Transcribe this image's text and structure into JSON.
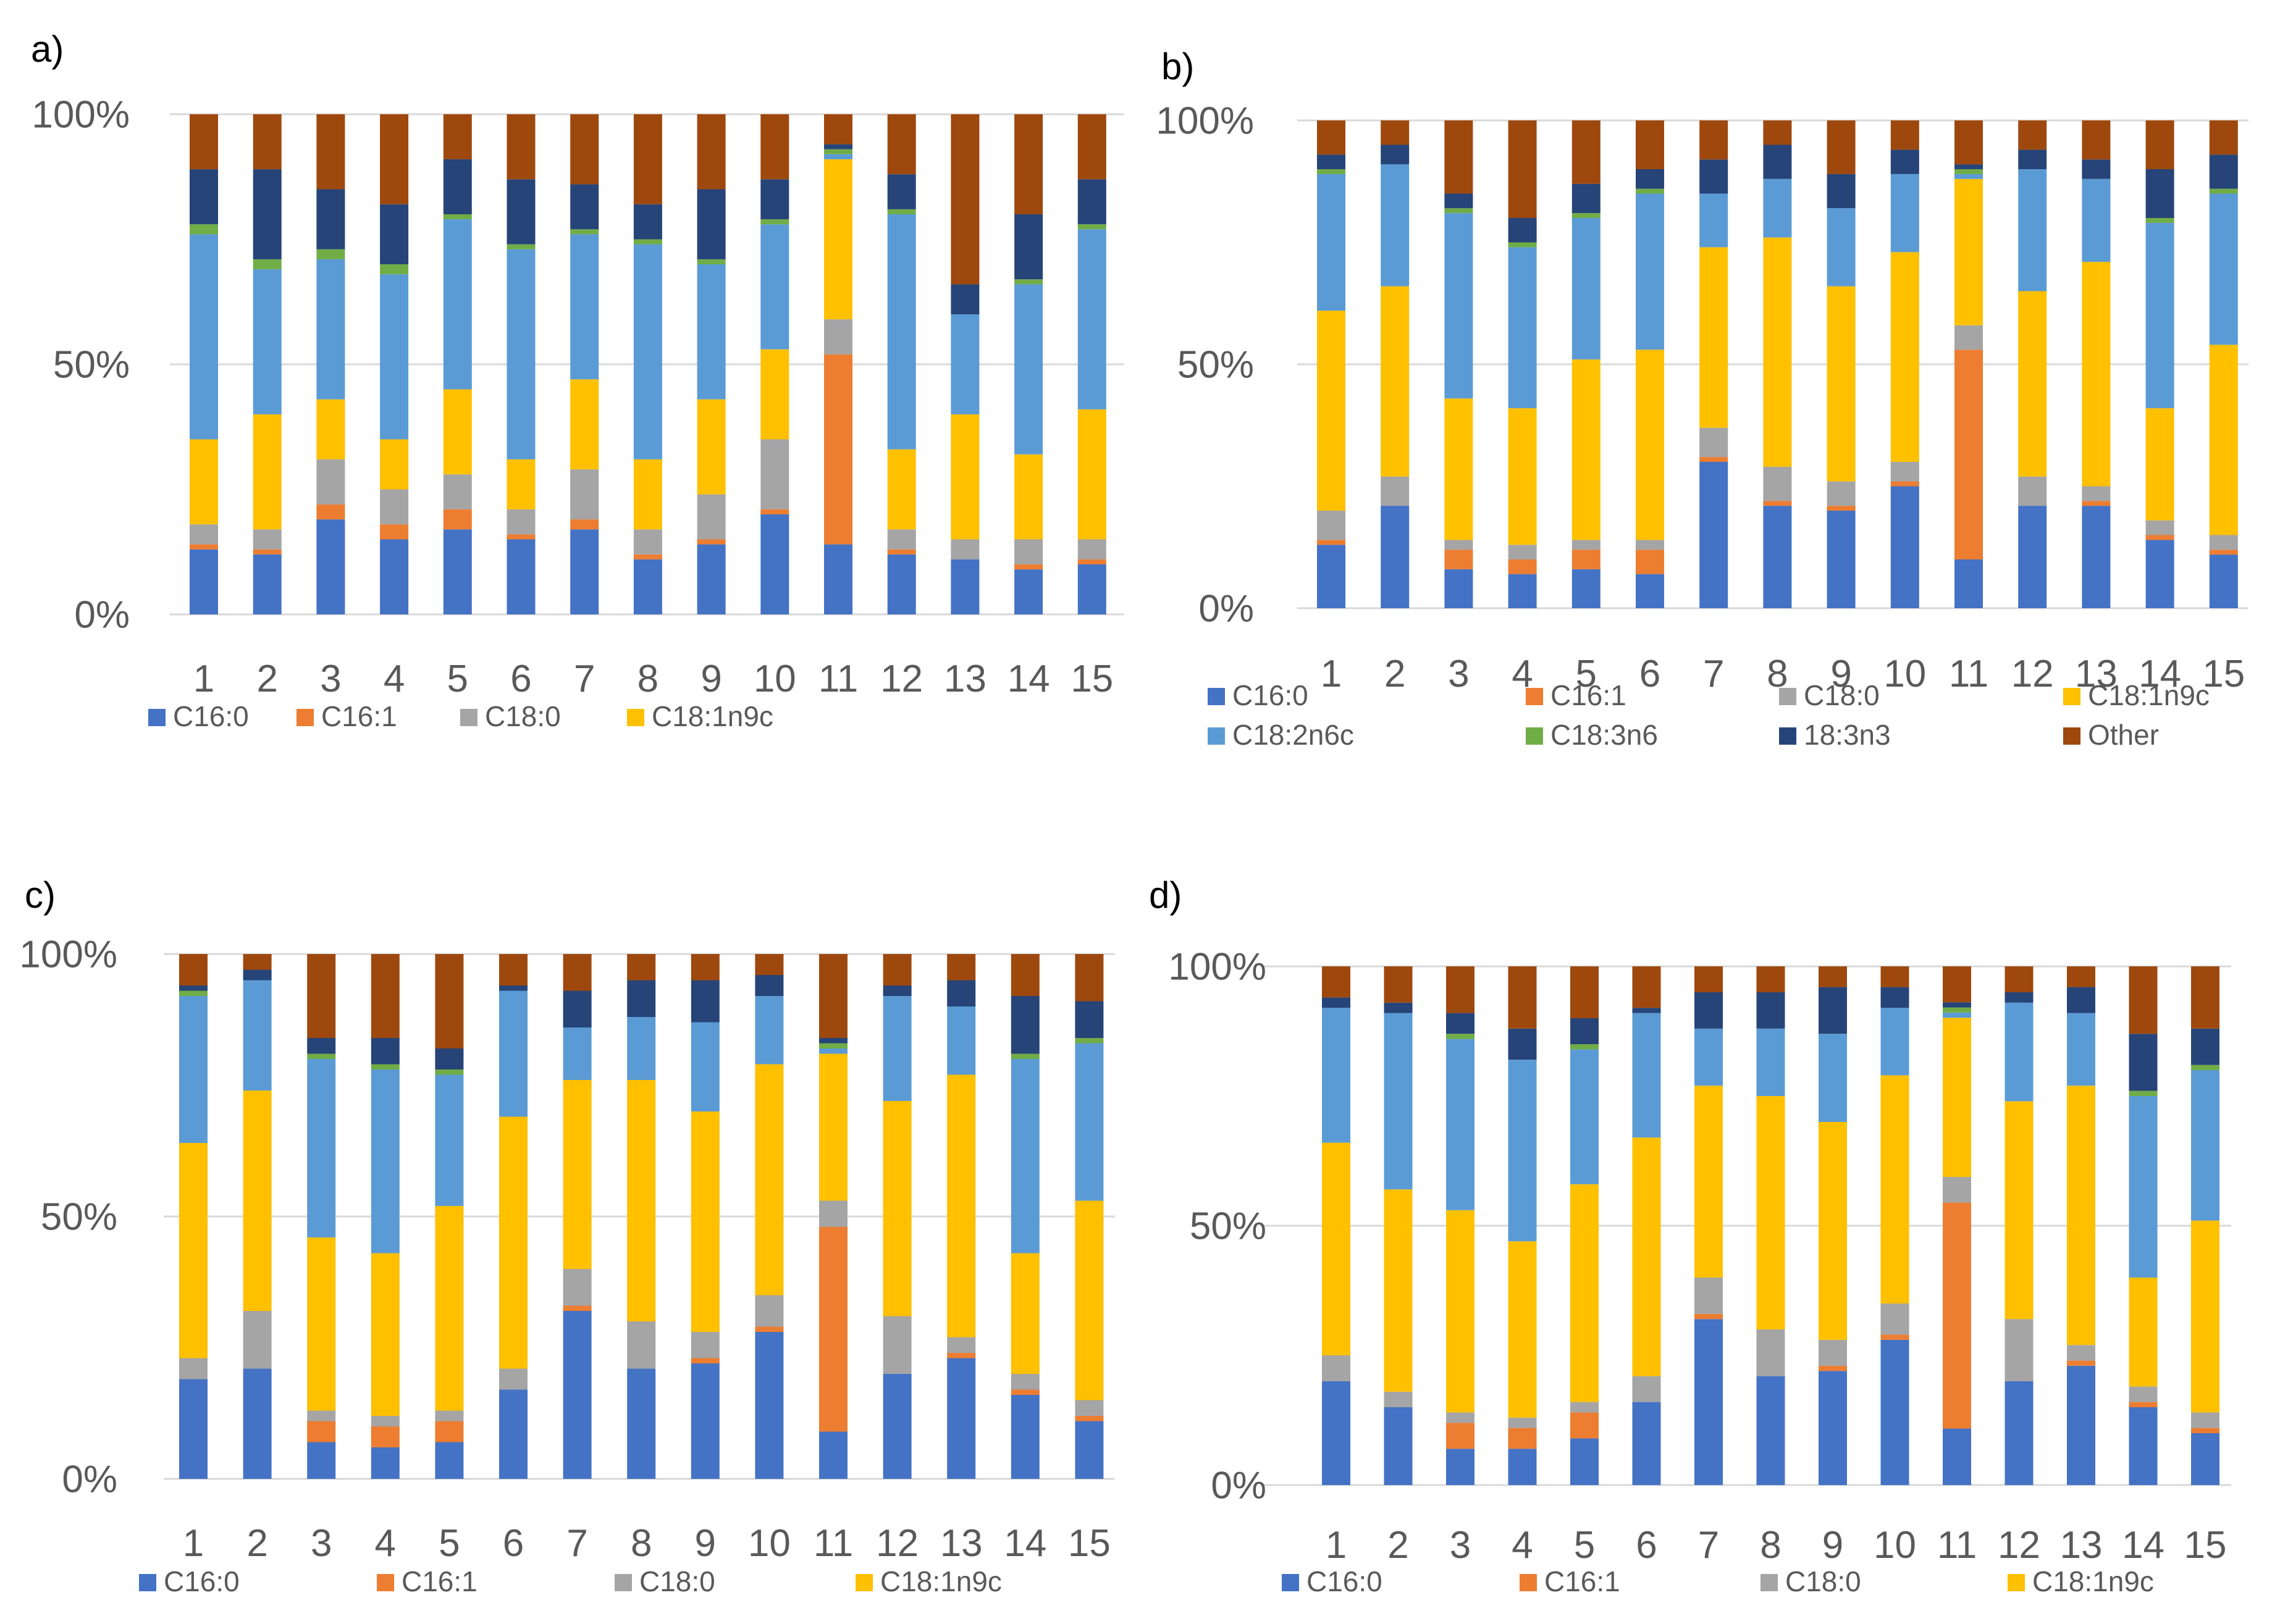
{
  "colors": {
    "C16:0": "#4472c4",
    "C16:1": "#ed7d31",
    "C18:0": "#a5a5a5",
    "C18:1n9c": "#ffc000",
    "C18:2n6c": "#5b9bd5",
    "C18:3n6": "#70ad47",
    "18:3n3": "#264478",
    "Other": "#9e480e",
    "grid": "#d9d9d9",
    "text": "#595959",
    "panel_label": "#000000"
  },
  "chart_data": [
    {
      "panel": "a)",
      "type": "bar",
      "stacked": "percent",
      "y_tick_labels": [
        "0%",
        "50%",
        "100%"
      ],
      "ylim": [
        0,
        100
      ],
      "categories": [
        "1",
        "2",
        "3",
        "4",
        "5",
        "6",
        "7",
        "8",
        "9",
        "10",
        "11",
        "12",
        "13",
        "14",
        "15"
      ],
      "legend": [
        "C16:0",
        "C16:1",
        "C18:0",
        "C18:1n9c"
      ],
      "series": [
        {
          "name": "C16:0",
          "values": [
            13,
            12,
            19,
            15,
            17,
            15,
            17,
            11,
            14,
            20,
            14,
            12,
            11,
            9,
            10
          ]
        },
        {
          "name": "C16:1",
          "values": [
            1,
            1,
            3,
            3,
            4,
            1,
            2,
            1,
            1,
            1,
            38,
            1,
            0,
            1,
            1
          ]
        },
        {
          "name": "C18:0",
          "values": [
            4,
            4,
            9,
            7,
            7,
            5,
            10,
            5,
            9,
            14,
            7,
            4,
            4,
            5,
            4
          ]
        },
        {
          "name": "C18:1n9c",
          "values": [
            17,
            23,
            12,
            10,
            17,
            10,
            18,
            14,
            19,
            18,
            32,
            16,
            25,
            17,
            26
          ]
        },
        {
          "name": "C18:2n6c",
          "values": [
            41,
            29,
            28,
            33,
            34,
            42,
            29,
            43,
            27,
            25,
            1,
            47,
            20,
            34,
            36
          ]
        },
        {
          "name": "C18:3n6",
          "values": [
            2,
            2,
            2,
            2,
            1,
            1,
            1,
            1,
            1,
            1,
            1,
            1,
            0,
            1,
            1
          ]
        },
        {
          "name": "18:3n3",
          "values": [
            11,
            18,
            12,
            12,
            11,
            13,
            9,
            7,
            14,
            8,
            1,
            7,
            6,
            13,
            9
          ]
        },
        {
          "name": "Other",
          "values": [
            11,
            11,
            15,
            18,
            9,
            13,
            14,
            18,
            15,
            13,
            6,
            12,
            34,
            20,
            13
          ]
        }
      ]
    },
    {
      "panel": "b)",
      "type": "bar",
      "stacked": "percent",
      "y_tick_labels": [
        "0%",
        "50%",
        "100%"
      ],
      "ylim": [
        0,
        100
      ],
      "categories": [
        "1",
        "2",
        "3",
        "4",
        "5",
        "6",
        "7",
        "8",
        "9",
        "10",
        "11",
        "12",
        "13",
        "14",
        "15"
      ],
      "legend": [
        "C16:0",
        "C16:1",
        "C18:0",
        "C18:1n9c",
        "C18:2n6c",
        "C18:3n6",
        "18:3n3",
        "Other"
      ],
      "series": [
        {
          "name": "C16:0",
          "values": [
            13,
            21,
            8,
            7,
            8,
            7,
            30,
            21,
            20,
            25,
            10,
            21,
            21,
            14,
            11
          ]
        },
        {
          "name": "C16:1",
          "values": [
            1,
            0,
            4,
            3,
            4,
            5,
            1,
            1,
            1,
            1,
            43,
            0,
            1,
            1,
            1
          ]
        },
        {
          "name": "C18:0",
          "values": [
            6,
            6,
            2,
            3,
            2,
            2,
            6,
            7,
            5,
            4,
            5,
            6,
            3,
            3,
            3
          ]
        },
        {
          "name": "C18:1n9c",
          "values": [
            41,
            39,
            29,
            28,
            37,
            39,
            37,
            47,
            40,
            43,
            30,
            38,
            46,
            23,
            39
          ]
        },
        {
          "name": "C18:2n6c",
          "values": [
            28,
            25,
            38,
            33,
            29,
            32,
            11,
            12,
            16,
            16,
            1,
            25,
            17,
            38,
            31
          ]
        },
        {
          "name": "C18:3n6",
          "values": [
            1,
            0,
            1,
            1,
            1,
            1,
            0,
            0,
            0,
            0,
            1,
            0,
            0,
            1,
            1
          ]
        },
        {
          "name": "18:3n3",
          "values": [
            3,
            4,
            3,
            5,
            6,
            4,
            7,
            7,
            7,
            5,
            1,
            4,
            4,
            10,
            7
          ]
        },
        {
          "name": "Other",
          "values": [
            7,
            5,
            15,
            20,
            13,
            10,
            8,
            5,
            11,
            6,
            9,
            6,
            8,
            10,
            7
          ]
        }
      ]
    },
    {
      "panel": "c)",
      "type": "bar",
      "stacked": "percent",
      "y_tick_labels": [
        "0%",
        "50%",
        "100%"
      ],
      "ylim": [
        0,
        100
      ],
      "categories": [
        "1",
        "2",
        "3",
        "4",
        "5",
        "6",
        "7",
        "8",
        "9",
        "10",
        "11",
        "12",
        "13",
        "14",
        "15"
      ],
      "legend": [
        "C16:0",
        "C16:1",
        "C18:0",
        "C18:1n9c"
      ],
      "series": [
        {
          "name": "C16:0",
          "values": [
            19,
            21,
            7,
            6,
            7,
            17,
            32,
            21,
            22,
            28,
            9,
            20,
            23,
            16,
            11
          ]
        },
        {
          "name": "C16:1",
          "values": [
            0,
            0,
            4,
            4,
            4,
            0,
            1,
            0,
            1,
            1,
            39,
            0,
            1,
            1,
            1
          ]
        },
        {
          "name": "C18:0",
          "values": [
            4,
            11,
            2,
            2,
            2,
            4,
            7,
            9,
            5,
            6,
            5,
            11,
            3,
            3,
            3
          ]
        },
        {
          "name": "C18:1n9c",
          "values": [
            41,
            42,
            33,
            31,
            39,
            48,
            36,
            46,
            42,
            44,
            28,
            41,
            50,
            23,
            38
          ]
        },
        {
          "name": "C18:2n6c",
          "values": [
            28,
            21,
            34,
            35,
            25,
            24,
            10,
            12,
            17,
            13,
            1,
            20,
            13,
            37,
            30
          ]
        },
        {
          "name": "C18:3n6",
          "values": [
            1,
            0,
            1,
            1,
            1,
            0,
            0,
            0,
            0,
            0,
            1,
            0,
            0,
            1,
            1
          ]
        },
        {
          "name": "18:3n3",
          "values": [
            1,
            2,
            3,
            5,
            4,
            1,
            7,
            7,
            8,
            4,
            1,
            2,
            5,
            11,
            7
          ]
        },
        {
          "name": "Other",
          "values": [
            6,
            3,
            16,
            16,
            18,
            6,
            7,
            5,
            5,
            4,
            16,
            6,
            5,
            8,
            9
          ]
        }
      ]
    },
    {
      "panel": "d)",
      "type": "bar",
      "stacked": "percent",
      "y_tick_labels": [
        "0%",
        "50%",
        "100%"
      ],
      "ylim": [
        0,
        100
      ],
      "categories": [
        "1",
        "2",
        "3",
        "4",
        "5",
        "6",
        "7",
        "8",
        "9",
        "10",
        "11",
        "12",
        "13",
        "14",
        "15"
      ],
      "legend": [
        "C16:0",
        "C16:1",
        "C18:0",
        "C18:1n9c"
      ],
      "series": [
        {
          "name": "C16:0",
          "values": [
            20,
            15,
            7,
            7,
            9,
            16,
            32,
            21,
            22,
            28,
            11,
            20,
            23,
            15,
            10
          ]
        },
        {
          "name": "C16:1",
          "values": [
            0,
            0,
            5,
            4,
            5,
            0,
            1,
            0,
            1,
            1,
            44,
            0,
            1,
            1,
            1
          ]
        },
        {
          "name": "C18:0",
          "values": [
            5,
            3,
            2,
            2,
            2,
            5,
            7,
            9,
            5,
            6,
            5,
            12,
            3,
            3,
            3
          ]
        },
        {
          "name": "C18:1n9c",
          "values": [
            41,
            39,
            39,
            34,
            42,
            46,
            37,
            45,
            42,
            44,
            31,
            42,
            50,
            21,
            37
          ]
        },
        {
          "name": "C18:2n6c",
          "values": [
            26,
            34,
            33,
            35,
            26,
            24,
            11,
            13,
            17,
            13,
            1,
            19,
            14,
            35,
            29
          ]
        },
        {
          "name": "C18:3n6",
          "values": [
            0,
            0,
            1,
            0,
            1,
            0,
            0,
            0,
            0,
            0,
            1,
            0,
            0,
            1,
            1
          ]
        },
        {
          "name": "18:3n3",
          "values": [
            2,
            2,
            4,
            6,
            5,
            1,
            7,
            7,
            9,
            4,
            1,
            2,
            5,
            11,
            7
          ]
        },
        {
          "name": "Other",
          "values": [
            6,
            7,
            9,
            12,
            10,
            8,
            5,
            5,
            4,
            4,
            7,
            5,
            4,
            13,
            12
          ]
        }
      ]
    }
  ]
}
